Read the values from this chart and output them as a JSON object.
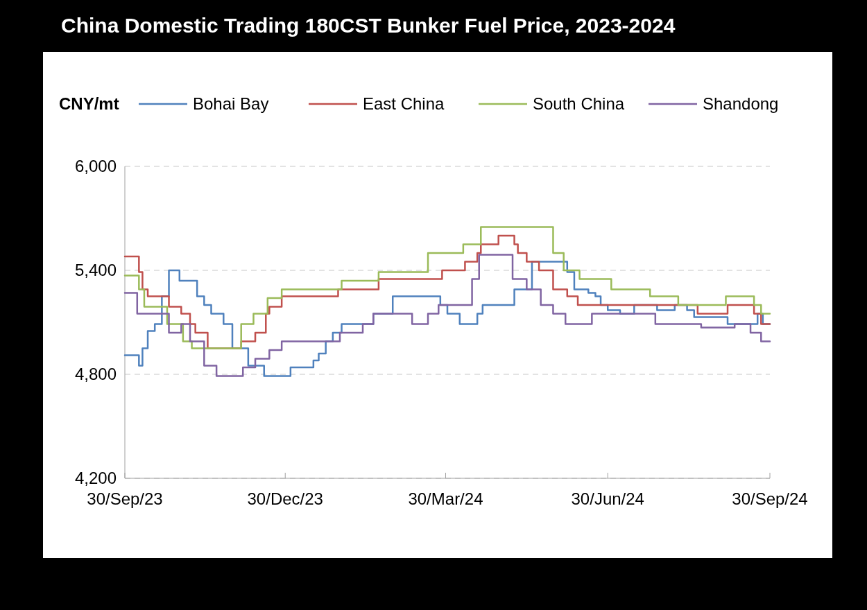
{
  "chart_data": {
    "type": "step",
    "title": "China Domestic Trading 180CST Bunker Fuel Price, 2023-2024",
    "ylabel": "CNY/mt",
    "xlim": [
      "2023-09-30",
      "2024-09-30"
    ],
    "xticks": [
      {
        "value": "2023-09-30",
        "label": "30/Sep/23"
      },
      {
        "value": "2023-12-30",
        "label": "30/Dec/23"
      },
      {
        "value": "2024-03-30",
        "label": "30/Mar/24"
      },
      {
        "value": "2024-06-30",
        "label": "30/Jun/24"
      },
      {
        "value": "2024-09-30",
        "label": "30/Sep/24"
      }
    ],
    "ylim": [
      4200,
      6000
    ],
    "yticks": [
      {
        "value": 4200,
        "label": "4,200"
      },
      {
        "value": 4800,
        "label": "4,800"
      },
      {
        "value": 5400,
        "label": "5,400"
      },
      {
        "value": 6000,
        "label": "6,000"
      }
    ],
    "grid": "y",
    "legend": "top",
    "series": [
      {
        "name": "Bohai Bay",
        "color": "#4f81bd",
        "x": [
          "2023-09-30",
          "2023-10-08",
          "2023-10-10",
          "2023-10-13",
          "2023-10-17",
          "2023-10-21",
          "2023-10-25",
          "2023-10-31",
          "2023-11-10",
          "2023-11-14",
          "2023-11-18",
          "2023-11-25",
          "2023-11-30",
          "2023-12-09",
          "2023-12-18",
          "2024-01-02",
          "2024-01-15",
          "2024-01-18",
          "2024-01-22",
          "2024-01-26",
          "2024-01-31",
          "2024-02-18",
          "2024-02-29",
          "2024-03-27",
          "2024-03-31",
          "2024-04-07",
          "2024-04-17",
          "2024-04-20",
          "2024-05-08",
          "2024-05-18",
          "2024-06-07",
          "2024-06-11",
          "2024-06-19",
          "2024-06-23",
          "2024-06-26",
          "2024-06-30",
          "2024-07-07",
          "2024-07-15",
          "2024-07-28",
          "2024-08-07",
          "2024-08-14",
          "2024-08-18",
          "2024-09-06",
          "2024-09-23",
          "2024-09-26",
          "2024-09-30"
        ],
        "values": [
          4910,
          4850,
          4950,
          5050,
          5090,
          5250,
          5400,
          5340,
          5250,
          5200,
          5150,
          5090,
          4950,
          4850,
          4790,
          4840,
          4880,
          4920,
          4990,
          5040,
          5090,
          5150,
          5250,
          5200,
          5150,
          5090,
          5150,
          5200,
          5290,
          5450,
          5390,
          5290,
          5270,
          5250,
          5200,
          5170,
          5150,
          5200,
          5170,
          5200,
          5170,
          5130,
          5090,
          5150,
          5090,
          5090
        ]
      },
      {
        "name": "East China",
        "color": "#c0504d",
        "x": [
          "2023-09-30",
          "2023-10-08",
          "2023-10-10",
          "2023-10-13",
          "2023-10-25",
          "2023-11-01",
          "2023-11-06",
          "2023-11-09",
          "2023-11-16",
          "2023-12-05",
          "2023-12-13",
          "2023-12-19",
          "2023-12-21",
          "2023-12-28",
          "2024-01-29",
          "2024-02-21",
          "2024-03-28",
          "2024-04-10",
          "2024-04-17",
          "2024-04-19",
          "2024-04-29",
          "2024-05-08",
          "2024-05-10",
          "2024-05-15",
          "2024-05-22",
          "2024-05-30",
          "2024-06-07",
          "2024-06-13",
          "2024-08-20",
          "2024-09-06",
          "2024-09-21",
          "2024-09-25",
          "2024-09-30"
        ],
        "values": [
          5480,
          5390,
          5290,
          5250,
          5190,
          5150,
          5090,
          5040,
          4950,
          4990,
          5040,
          5150,
          5190,
          5250,
          5290,
          5350,
          5400,
          5450,
          5500,
          5550,
          5600,
          5550,
          5500,
          5450,
          5400,
          5290,
          5250,
          5200,
          5150,
          5200,
          5150,
          5090,
          5090
        ]
      },
      {
        "name": "South China",
        "color": "#9bbb59",
        "x": [
          "2023-09-30",
          "2023-10-08",
          "2023-10-11",
          "2023-10-24",
          "2023-11-02",
          "2023-11-07",
          "2023-12-05",
          "2023-12-12",
          "2023-12-20",
          "2023-12-28",
          "2024-01-31",
          "2024-02-21",
          "2024-03-20",
          "2024-04-09",
          "2024-04-19",
          "2024-05-30",
          "2024-06-05",
          "2024-06-14",
          "2024-07-02",
          "2024-07-24",
          "2024-08-09",
          "2024-09-05",
          "2024-09-21",
          "2024-09-25",
          "2024-09-30"
        ],
        "values": [
          5370,
          5290,
          5190,
          5090,
          4990,
          4950,
          5090,
          5150,
          5240,
          5290,
          5340,
          5390,
          5500,
          5550,
          5650,
          5500,
          5400,
          5350,
          5290,
          5250,
          5200,
          5250,
          5200,
          5150,
          5150
        ]
      },
      {
        "name": "Shandong",
        "color": "#8064a2",
        "x": [
          "2023-09-30",
          "2023-10-07",
          "2023-10-25",
          "2023-11-01",
          "2023-11-06",
          "2023-11-14",
          "2023-11-21",
          "2023-12-06",
          "2023-12-13",
          "2023-12-21",
          "2023-12-28",
          "2024-01-30",
          "2024-02-12",
          "2024-02-18",
          "2024-03-11",
          "2024-03-20",
          "2024-03-26",
          "2024-04-14",
          "2024-04-18",
          "2024-05-07",
          "2024-05-15",
          "2024-05-23",
          "2024-05-30",
          "2024-06-06",
          "2024-06-21",
          "2024-07-27",
          "2024-08-22",
          "2024-09-10",
          "2024-09-19",
          "2024-09-25",
          "2024-09-30"
        ],
        "values": [
          5270,
          5150,
          5040,
          5090,
          4990,
          4850,
          4790,
          4840,
          4890,
          4940,
          4990,
          5040,
          5090,
          5150,
          5090,
          5150,
          5200,
          5350,
          5490,
          5350,
          5290,
          5200,
          5150,
          5090,
          5150,
          5090,
          5070,
          5090,
          5040,
          4990,
          4990
        ]
      }
    ]
  }
}
